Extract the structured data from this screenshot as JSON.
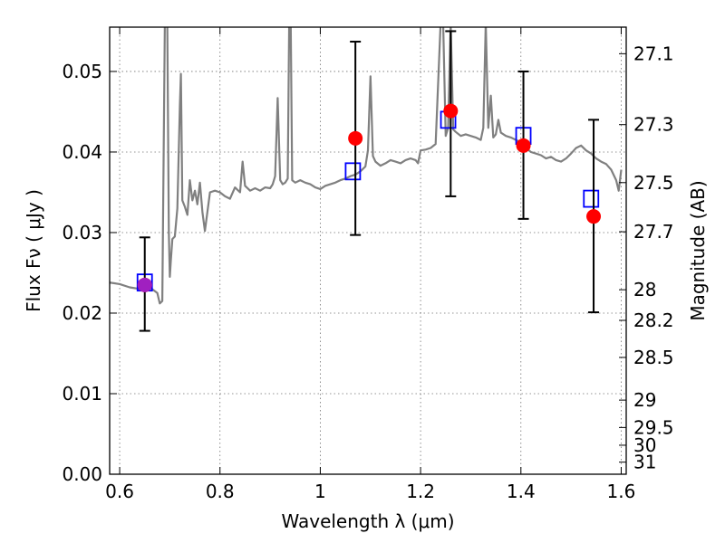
{
  "chart_data": {
    "type": "scatter",
    "xlabel": "Wavelength  λ (μm)",
    "ylabel": "Flux  Fν  ( μJy )",
    "ylabel_right": "Magnitude (AB)",
    "xlim": [
      0.58,
      1.61
    ],
    "ylim": [
      0.0,
      0.0555
    ],
    "grid": true,
    "x_ticks": [
      0.6,
      0.8,
      1.0,
      1.2,
      1.4,
      1.6
    ],
    "x_tick_labels": [
      "0.6",
      "0.8",
      "1",
      "1.2",
      "1.4",
      "1.6"
    ],
    "y_ticks": [
      0.0,
      0.01,
      0.02,
      0.03,
      0.04,
      0.05
    ],
    "y_tick_labels": [
      "0.00",
      "0.01",
      "0.02",
      "0.03",
      "0.04",
      "0.05"
    ],
    "right_ticks": [
      {
        "label": "27.1",
        "flux": 0.0522
      },
      {
        "label": "27.3",
        "flux": 0.0434
      },
      {
        "label": "27.5",
        "flux": 0.0362
      },
      {
        "label": "27.7",
        "flux": 0.0301
      },
      {
        "label": "28",
        "flux": 0.0229
      },
      {
        "label": "28.2",
        "flux": 0.0191
      },
      {
        "label": "28.5",
        "flux": 0.0145
      },
      {
        "label": "29",
        "flux": 0.0092
      },
      {
        "label": "29.5",
        "flux": 0.0058
      },
      {
        "label": "30",
        "flux": 0.0036
      },
      {
        "label": "31",
        "flux": 0.0015
      }
    ],
    "series": [
      {
        "kind": "spectrum",
        "color": "#808080",
        "x": [
          0.58,
          0.6,
          0.62,
          0.64,
          0.66,
          0.675,
          0.68,
          0.685,
          0.69,
          0.695,
          0.698,
          0.7,
          0.702,
          0.705,
          0.71,
          0.715,
          0.72,
          0.722,
          0.725,
          0.73,
          0.735,
          0.74,
          0.745,
          0.75,
          0.755,
          0.76,
          0.765,
          0.77,
          0.78,
          0.79,
          0.8,
          0.81,
          0.82,
          0.83,
          0.84,
          0.845,
          0.85,
          0.86,
          0.87,
          0.88,
          0.89,
          0.9,
          0.905,
          0.91,
          0.915,
          0.92,
          0.925,
          0.93,
          0.935,
          0.938,
          0.941,
          0.944,
          0.95,
          0.96,
          0.97,
          0.98,
          0.99,
          1.0,
          1.01,
          1.02,
          1.03,
          1.04,
          1.05,
          1.06,
          1.07,
          1.08,
          1.09,
          1.095,
          1.1,
          1.105,
          1.11,
          1.12,
          1.13,
          1.14,
          1.15,
          1.16,
          1.17,
          1.18,
          1.19,
          1.195,
          1.2,
          1.21,
          1.22,
          1.23,
          1.24,
          1.245,
          1.25,
          1.255,
          1.26,
          1.265,
          1.27,
          1.28,
          1.29,
          1.3,
          1.31,
          1.32,
          1.325,
          1.33,
          1.335,
          1.34,
          1.345,
          1.35,
          1.355,
          1.36,
          1.37,
          1.38,
          1.39,
          1.4,
          1.41,
          1.42,
          1.43,
          1.44,
          1.45,
          1.46,
          1.47,
          1.48,
          1.49,
          1.5,
          1.51,
          1.52,
          1.53,
          1.54,
          1.55,
          1.56,
          1.57,
          1.58,
          1.59,
          1.595,
          1.6
        ],
        "y": [
          0.0238,
          0.0236,
          0.0232,
          0.023,
          0.0232,
          0.0225,
          0.0212,
          0.0215,
          0.056,
          0.056,
          0.03,
          0.0245,
          0.0265,
          0.0292,
          0.0295,
          0.033,
          0.0458,
          0.0497,
          0.034,
          0.0332,
          0.0322,
          0.0365,
          0.034,
          0.0352,
          0.0335,
          0.0362,
          0.0325,
          0.0302,
          0.035,
          0.0352,
          0.035,
          0.0345,
          0.0342,
          0.0356,
          0.035,
          0.0388,
          0.0358,
          0.0352,
          0.0355,
          0.0352,
          0.0356,
          0.0355,
          0.036,
          0.037,
          0.0467,
          0.0365,
          0.036,
          0.0362,
          0.0367,
          0.056,
          0.056,
          0.0365,
          0.0362,
          0.0365,
          0.0362,
          0.036,
          0.0356,
          0.0354,
          0.0358,
          0.036,
          0.0362,
          0.0365,
          0.0367,
          0.037,
          0.0372,
          0.0376,
          0.0382,
          0.0402,
          0.0494,
          0.0395,
          0.0388,
          0.0383,
          0.0386,
          0.039,
          0.0388,
          0.0386,
          0.039,
          0.0392,
          0.039,
          0.0386,
          0.0402,
          0.0403,
          0.0405,
          0.041,
          0.056,
          0.056,
          0.042,
          0.043,
          0.056,
          0.0428,
          0.0425,
          0.042,
          0.0422,
          0.042,
          0.0418,
          0.0415,
          0.043,
          0.056,
          0.043,
          0.047,
          0.0418,
          0.0422,
          0.044,
          0.0424,
          0.042,
          0.0418,
          0.0415,
          0.0412,
          0.0405,
          0.04,
          0.0398,
          0.0396,
          0.0392,
          0.0394,
          0.039,
          0.0388,
          0.0392,
          0.0398,
          0.0405,
          0.0408,
          0.0402,
          0.0398,
          0.0392,
          0.0388,
          0.0385,
          0.0378,
          0.0365,
          0.0352,
          0.0378
        ]
      },
      {
        "kind": "observed",
        "marker": "circle",
        "color": "#ff0000",
        "x": [
          0.65,
          1.07,
          1.26,
          1.405,
          1.545
        ],
        "y": [
          0.0235,
          0.0417,
          0.0451,
          0.0408,
          0.032
        ],
        "err_low": [
          0.0178,
          0.0297,
          0.0345,
          0.0317,
          0.0201
        ],
        "err_high": [
          0.0294,
          0.0537,
          0.055,
          0.05,
          0.044
        ]
      },
      {
        "kind": "model",
        "marker": "square",
        "color": "#0000ff",
        "x": [
          0.65,
          1.065,
          1.255,
          1.405,
          1.54
        ],
        "y": [
          0.0238,
          0.0376,
          0.044,
          0.042,
          0.0342
        ]
      }
    ],
    "overlap_marker": {
      "x": 0.65,
      "y": 0.0235,
      "color": "#a020c0"
    }
  }
}
